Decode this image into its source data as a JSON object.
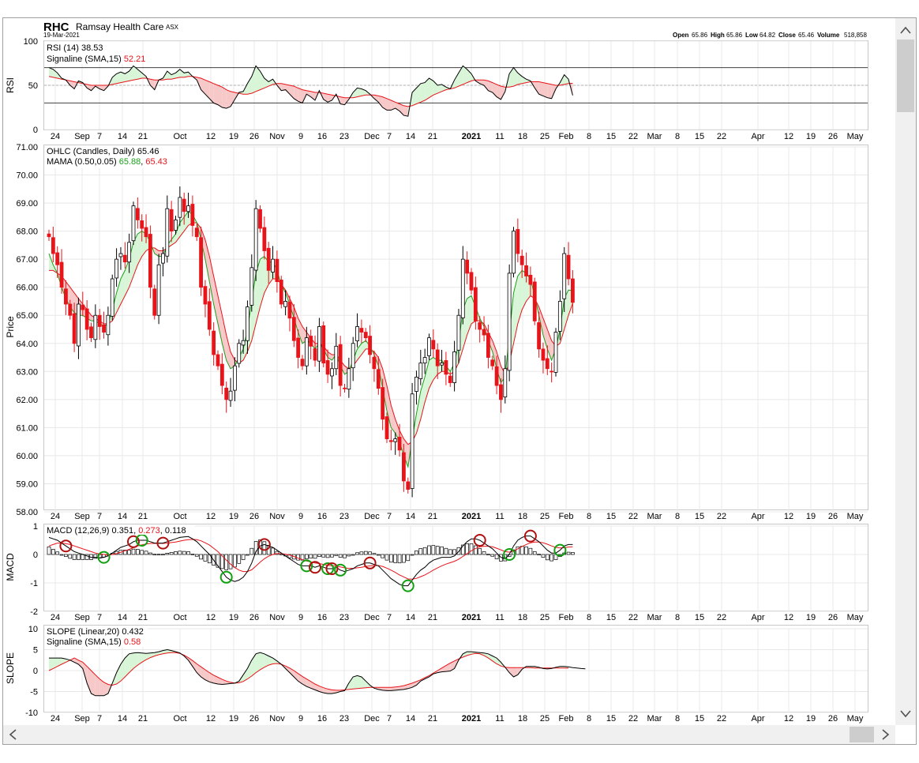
{
  "header": {
    "ticker": "RHC",
    "company": "Ramsay Health Care",
    "exchange": "ASX",
    "date": "19-Mar-2021",
    "open_label": "Open",
    "open": "65.86",
    "high_label": "High",
    "high": "65.86",
    "low_label": "Low",
    "low": "64.82",
    "close_label": "Close",
    "close": "65.46",
    "volume_label": "Volume",
    "volume": "518,858"
  },
  "colors": {
    "up_candle": "#ffffff",
    "down_candle": "#e8141a",
    "mama": "#1aa01a",
    "fama": "#e8141a",
    "fill_up": "#d8f5d8",
    "fill_down": "#f7c8c8",
    "macd_marker_red": "#b01010",
    "macd_marker_green": "#10a010"
  },
  "x_axis": {
    "tick_labels": [
      "24",
      "Sep",
      "7",
      "14",
      "21",
      "Oct",
      "12",
      "19",
      "26",
      "Nov",
      "9",
      "16",
      "23",
      "Dec",
      "7",
      "14",
      "21",
      "2021",
      "11",
      "18",
      "25",
      "Feb",
      "8",
      "15",
      "22",
      "Mar",
      "8",
      "15",
      "22",
      "Apr",
      "12",
      "19",
      "26",
      "May"
    ]
  },
  "panels": {
    "rsi": {
      "axis_label": "RSI",
      "legend1": "RSI (14) 38.53",
      "legend2_label": "Signaline (SMA,15)",
      "legend2_value": "52.21",
      "y_ticks": [
        "100",
        "50",
        "0"
      ]
    },
    "price": {
      "axis_label": "Price",
      "legend1": "OHLC (Candles, Daily) 65.46",
      "legend2_label": "MAMA (0.50,0.05)",
      "legend2_v1": "65.88",
      "legend2_v2": "65.43",
      "y_ticks": [
        "71.00",
        "70.00",
        "69.00",
        "68.00",
        "67.00",
        "66.00",
        "65.00",
        "64.00",
        "63.00",
        "62.00",
        "61.00",
        "60.00",
        "59.00",
        "58.00"
      ]
    },
    "macd": {
      "axis_label": "MACD",
      "legend_label": "MACD (12,26,9)",
      "legend_v1": "0.351",
      "legend_v2": "0.273",
      "legend_v3": "0.118",
      "y_ticks": [
        "1",
        "0",
        "-1",
        "-2"
      ]
    },
    "slope": {
      "axis_label": "SLOPE",
      "legend1": "SLOPE (Linear,20) 0.432",
      "legend2_label": "Signaline (SMA,15)",
      "legend2_value": "0.58",
      "y_ticks": [
        "10",
        "5",
        "0",
        "-5",
        "-10"
      ]
    }
  },
  "chart_data": {
    "type": "candlestick",
    "title": "RHC Ramsay Health Care ASX",
    "x_tick_labels": [
      "24",
      "Sep",
      "7",
      "14",
      "21",
      "Oct",
      "12",
      "19",
      "26",
      "Nov",
      "9",
      "16",
      "23",
      "Dec",
      "7",
      "14",
      "21",
      "2021",
      "11",
      "18",
      "25",
      "Feb",
      "8",
      "15",
      "22",
      "Mar",
      "8",
      "15",
      "22",
      "Apr",
      "12",
      "19",
      "26",
      "May"
    ],
    "price_ylim": [
      58,
      71
    ],
    "rsi_ylim": [
      0,
      100
    ],
    "macd_ylim": [
      -2,
      1
    ],
    "slope_ylim": [
      -10,
      10
    ],
    "close": [
      67.8,
      67.2,
      66.8,
      66.0,
      65.4,
      65.0,
      64.0,
      65.4,
      65.2,
      64.5,
      64.2,
      65.0,
      64.6,
      64.4,
      65.0,
      66.3,
      67.0,
      67.2,
      66.9,
      67.6,
      68.9,
      68.4,
      68.1,
      67.8,
      66.0,
      65.0,
      66.8,
      67.2,
      68.8,
      68.0,
      68.4,
      69.2,
      68.7,
      68.9,
      68.2,
      67.8,
      66.0,
      65.4,
      64.5,
      63.6,
      63.2,
      62.5,
      62.0,
      62.3,
      63.2,
      64.0,
      64.1,
      65.3,
      66.7,
      68.8,
      68.1,
      67.3,
      66.6,
      67.0,
      66.2,
      65.4,
      65.5,
      64.9,
      64.1,
      63.5,
      63.2,
      64.2,
      63.9,
      63.4,
      64.6,
      63.3,
      62.9,
      63.1,
      63.9,
      62.5,
      62.4,
      63.1,
      64.0,
      64.6,
      64.4,
      64.2,
      63.6,
      63.1,
      62.4,
      61.3,
      60.6,
      60.5,
      60.6,
      60.2,
      59.1,
      58.8,
      62.2,
      62.8,
      63.3,
      63.5,
      64.2,
      63.8,
      63.2,
      63.3,
      62.9,
      62.6,
      63.7,
      65.0,
      67.0,
      66.5,
      65.9,
      64.8,
      64.5,
      64.3,
      63.5,
      63.2,
      62.5,
      62.0,
      63.1,
      66.5,
      68.0,
      67.2,
      66.8,
      66.4,
      66.1,
      64.8,
      63.8,
      63.4,
      63.1,
      63.0,
      64.4,
      65.5,
      67.2,
      66.3,
      65.46
    ],
    "rsi": [
      70,
      68,
      64,
      58,
      56,
      50,
      46,
      55,
      53,
      47,
      44,
      49,
      46,
      44,
      49,
      59,
      63,
      65,
      63,
      66,
      72,
      68,
      64,
      60,
      50,
      45,
      56,
      58,
      66,
      62,
      64,
      68,
      64,
      65,
      60,
      56,
      45,
      40,
      35,
      30,
      28,
      25,
      24,
      26,
      34,
      42,
      43,
      52,
      60,
      72,
      66,
      58,
      54,
      57,
      50,
      44,
      45,
      40,
      35,
      32,
      30,
      40,
      37,
      33,
      44,
      34,
      31,
      33,
      40,
      29,
      28,
      34,
      42,
      47,
      46,
      44,
      40,
      35,
      31,
      25,
      22,
      22,
      24,
      21,
      16,
      15,
      42,
      47,
      52,
      53,
      58,
      55,
      50,
      51,
      48,
      46,
      56,
      64,
      72,
      68,
      63,
      55,
      52,
      50,
      44,
      42,
      37,
      34,
      43,
      63,
      70,
      64,
      60,
      57,
      55,
      47,
      40,
      38,
      36,
      35,
      46,
      53,
      62,
      57,
      38.53
    ],
    "rsi_signal": [
      60,
      59,
      58,
      57,
      56,
      55,
      54,
      53,
      52,
      51,
      50,
      50,
      50,
      50,
      50,
      51,
      52,
      53,
      54,
      55,
      56,
      57,
      58,
      58,
      57,
      56,
      56,
      56,
      57,
      57,
      58,
      59,
      59,
      60,
      60,
      59,
      58,
      56,
      54,
      52,
      50,
      48,
      45,
      43,
      42,
      41,
      40,
      40,
      41,
      43,
      45,
      47,
      49,
      51,
      52,
      52,
      51,
      50,
      49,
      47,
      45,
      44,
      43,
      42,
      42,
      41,
      40,
      39,
      38,
      37,
      36,
      36,
      36,
      37,
      38,
      39,
      39,
      39,
      38,
      37,
      35,
      33,
      31,
      29,
      27,
      26,
      27,
      29,
      31,
      33,
      36,
      39,
      41,
      43,
      45,
      46,
      47,
      49,
      51,
      53,
      55,
      56,
      56,
      56,
      55,
      53,
      51,
      49,
      48,
      48,
      49,
      51,
      52,
      53,
      54,
      54,
      54,
      53,
      52,
      51,
      50,
      50,
      51,
      52,
      52.21
    ],
    "mama": [
      67.2,
      66.8,
      66.5,
      66.0,
      65.6,
      65.3,
      65.1,
      65.0,
      65.0,
      64.9,
      64.8,
      64.8,
      64.7,
      64.6,
      64.7,
      65.2,
      65.8,
      66.3,
      66.6,
      67.0,
      67.6,
      67.9,
      68.0,
      67.9,
      67.6,
      67.2,
      67.1,
      67.1,
      67.5,
      67.7,
      67.9,
      68.3,
      68.5,
      68.7,
      68.6,
      68.3,
      67.7,
      67.0,
      66.2,
      65.4,
      64.7,
      64.0,
      63.4,
      63.1,
      63.2,
      63.5,
      63.8,
      64.5,
      65.5,
      66.5,
      67.0,
      67.1,
      66.9,
      66.9,
      66.6,
      66.1,
      65.8,
      65.4,
      64.9,
      64.4,
      64.0,
      64.1,
      64.0,
      63.8,
      64.0,
      63.8,
      63.5,
      63.4,
      63.6,
      63.2,
      62.9,
      63.0,
      63.4,
      63.8,
      64.0,
      64.1,
      63.9,
      63.6,
      63.2,
      62.4,
      61.6,
      61.0,
      60.8,
      60.5,
      60.0,
      59.6,
      60.6,
      61.5,
      62.3,
      62.8,
      63.4,
      63.5,
      63.4,
      63.4,
      63.2,
      63.0,
      63.3,
      64.0,
      65.2,
      65.6,
      65.7,
      65.3,
      64.9,
      64.6,
      64.1,
      63.7,
      63.1,
      62.6,
      62.8,
      64.3,
      65.8,
      66.4,
      66.6,
      66.5,
      66.3,
      65.7,
      65.0,
      64.3,
      63.8,
      63.4,
      63.8,
      64.5,
      65.6,
      65.9,
      65.88
    ],
    "fama": [
      66.6,
      66.6,
      66.5,
      66.4,
      66.2,
      66.0,
      65.8,
      65.6,
      65.4,
      65.2,
      65.0,
      64.9,
      64.8,
      64.7,
      64.7,
      64.8,
      65.1,
      65.4,
      65.7,
      66.0,
      66.4,
      66.8,
      67.1,
      67.3,
      67.4,
      67.4,
      67.3,
      67.3,
      67.4,
      67.5,
      67.6,
      67.8,
      68.0,
      68.2,
      68.3,
      68.3,
      68.1,
      67.7,
      67.1,
      66.4,
      65.7,
      65.0,
      64.3,
      63.7,
      63.4,
      63.3,
      63.4,
      63.7,
      64.1,
      64.7,
      65.3,
      65.8,
      66.1,
      66.3,
      66.3,
      66.1,
      65.9,
      65.6,
      65.3,
      64.9,
      64.6,
      64.4,
      64.2,
      64.0,
      64.0,
      63.9,
      63.7,
      63.6,
      63.6,
      63.4,
      63.2,
      63.1,
      63.2,
      63.4,
      63.6,
      63.8,
      63.8,
      63.7,
      63.5,
      63.1,
      62.5,
      61.8,
      61.3,
      60.9,
      60.6,
      60.4,
      60.5,
      60.8,
      61.3,
      61.9,
      62.4,
      62.7,
      62.9,
      63.0,
      63.0,
      62.9,
      63.0,
      63.3,
      63.8,
      64.3,
      64.7,
      64.8,
      64.8,
      64.7,
      64.4,
      64.1,
      63.7,
      63.2,
      62.9,
      63.3,
      64.0,
      64.7,
      65.2,
      65.5,
      65.7,
      65.6,
      65.3,
      64.9,
      64.5,
      64.1,
      63.9,
      64.0,
      64.5,
      65.0,
      65.43
    ],
    "macd": [
      0.6,
      0.55,
      0.5,
      0.4,
      0.3,
      0.2,
      0.1,
      0.05,
      0.0,
      -0.05,
      -0.1,
      -0.1,
      -0.12,
      -0.1,
      -0.05,
      0.05,
      0.15,
      0.25,
      0.3,
      0.35,
      0.45,
      0.5,
      0.5,
      0.5,
      0.45,
      0.4,
      0.4,
      0.4,
      0.45,
      0.5,
      0.55,
      0.6,
      0.62,
      0.63,
      0.55,
      0.45,
      0.3,
      0.15,
      0.0,
      -0.2,
      -0.4,
      -0.6,
      -0.8,
      -0.9,
      -0.95,
      -0.9,
      -0.8,
      -0.6,
      -0.3,
      0.1,
      0.3,
      0.35,
      0.3,
      0.25,
      0.15,
      0.05,
      -0.05,
      -0.15,
      -0.25,
      -0.35,
      -0.4,
      -0.4,
      -0.4,
      -0.45,
      -0.4,
      -0.45,
      -0.5,
      -0.5,
      -0.45,
      -0.55,
      -0.6,
      -0.55,
      -0.5,
      -0.4,
      -0.35,
      -0.3,
      -0.3,
      -0.35,
      -0.4,
      -0.55,
      -0.7,
      -0.85,
      -0.95,
      -1.05,
      -1.1,
      -1.1,
      -0.9,
      -0.7,
      -0.55,
      -0.45,
      -0.3,
      -0.2,
      -0.15,
      -0.1,
      -0.1,
      -0.1,
      -0.05,
      0.1,
      0.3,
      0.45,
      0.55,
      0.55,
      0.5,
      0.4,
      0.3,
      0.2,
      0.05,
      -0.1,
      -0.15,
      0.0,
      0.3,
      0.5,
      0.6,
      0.65,
      0.65,
      0.55,
      0.45,
      0.3,
      0.15,
      0.05,
      0.05,
      0.15,
      0.3,
      0.35,
      0.351
    ],
    "macd_signal": [
      0.3,
      0.35,
      0.4,
      0.4,
      0.38,
      0.35,
      0.3,
      0.25,
      0.2,
      0.15,
      0.1,
      0.05,
      0.02,
      0.0,
      -0.02,
      0.0,
      0.03,
      0.08,
      0.13,
      0.18,
      0.24,
      0.3,
      0.34,
      0.37,
      0.39,
      0.39,
      0.39,
      0.39,
      0.4,
      0.42,
      0.44,
      0.47,
      0.5,
      0.52,
      0.53,
      0.52,
      0.48,
      0.41,
      0.33,
      0.22,
      0.1,
      -0.05,
      -0.2,
      -0.34,
      -0.46,
      -0.55,
      -0.6,
      -0.6,
      -0.54,
      -0.41,
      -0.27,
      -0.15,
      -0.06,
      0.0,
      0.03,
      0.03,
      0.01,
      -0.02,
      -0.07,
      -0.13,
      -0.18,
      -0.23,
      -0.26,
      -0.3,
      -0.32,
      -0.35,
      -0.38,
      -0.4,
      -0.41,
      -0.44,
      -0.47,
      -0.49,
      -0.49,
      -0.47,
      -0.45,
      -0.42,
      -0.4,
      -0.39,
      -0.39,
      -0.42,
      -0.48,
      -0.55,
      -0.63,
      -0.72,
      -0.79,
      -0.86,
      -0.87,
      -0.84,
      -0.78,
      -0.72,
      -0.64,
      -0.55,
      -0.47,
      -0.4,
      -0.34,
      -0.29,
      -0.24,
      -0.17,
      -0.07,
      0.03,
      0.13,
      0.21,
      0.27,
      0.29,
      0.29,
      0.27,
      0.22,
      0.16,
      0.1,
      0.08,
      0.12,
      0.2,
      0.28,
      0.35,
      0.41,
      0.44,
      0.44,
      0.41,
      0.36,
      0.3,
      0.25,
      0.23,
      0.24,
      0.26,
      0.273
    ],
    "slope": [
      3,
      3,
      3,
      3,
      2.8,
      2.5,
      2,
      1.5,
      0.5,
      -3,
      -5.5,
      -6,
      -6,
      -6,
      -5.5,
      -3,
      -0.5,
      1.5,
      3,
      4,
      4.2,
      4.3,
      4.2,
      4.1,
      4.2,
      4.3,
      4.5,
      4.8,
      5,
      4.8,
      4.5,
      4.2,
      3.5,
      2.5,
      1,
      -0.5,
      -1.5,
      -2.2,
      -2.7,
      -3.0,
      -3.2,
      -3.3,
      -3.2,
      -3.1,
      -3.0,
      -2.5,
      -1.0,
      0.5,
      2.5,
      4.0,
      4.3,
      4.0,
      3.5,
      3.0,
      2.3,
      1.5,
      0.5,
      -0.5,
      -1.5,
      -2.5,
      -3.2,
      -3.8,
      -4.2,
      -4.6,
      -5.0,
      -5.3,
      -5.5,
      -5.5,
      -5.3,
      -5.0,
      -4.8,
      -3.0,
      -1.5,
      -1.2,
      -1.5,
      -2.5,
      -3.5,
      -4.2,
      -4.5,
      -4.7,
      -4.8,
      -4.8,
      -4.7,
      -4.6,
      -4.5,
      -4.3,
      -4.0,
      -3.5,
      -2.5,
      -2.0,
      -1.5,
      -0.8,
      -0.5,
      -0.3,
      -0.2,
      -0.1,
      0.5,
      2.5,
      4.0,
      4.5,
      4.5,
      4.4,
      4.3,
      4.2,
      4.0,
      3.5,
      3.0,
      2.0,
      0.8,
      -0.5,
      -1.5,
      -1.0,
      0.3,
      1.0,
      1.0,
      1.0,
      0.8,
      0.5,
      0.4,
      0.5,
      0.8,
      1.0,
      1.0,
      0.9,
      0.7,
      0.6,
      0.5,
      0.432
    ],
    "slope_signal": [
      0,
      0.5,
      1.0,
      1.5,
      2.0,
      2.5,
      3.0,
      2.5,
      2.0,
      1.0,
      0,
      -1.0,
      -2.0,
      -2.8,
      -3.3,
      -3.5,
      -3.2,
      -2.5,
      -1.5,
      -0.5,
      0.5,
      1.3,
      2.0,
      2.6,
      3.1,
      3.5,
      3.8,
      4.0,
      4.2,
      4.3,
      4.3,
      4.1,
      3.7,
      3.1,
      2.4,
      1.6,
      0.9,
      0.2,
      -0.5,
      -1.1,
      -1.6,
      -2.1,
      -2.5,
      -2.8,
      -3.0,
      -2.9,
      -2.6,
      -2.0,
      -1.3,
      -0.5,
      0.2,
      0.8,
      1.3,
      1.6,
      1.7,
      1.5,
      1.1,
      0.6,
      0.0,
      -0.7,
      -1.4,
      -2.0,
      -2.6,
      -3.2,
      -3.7,
      -4.1,
      -4.4,
      -4.6,
      -4.7,
      -4.7,
      -4.6,
      -4.5,
      -4.4,
      -4.3,
      -4.2,
      -4.1,
      -4.0,
      -4.0,
      -4.0,
      -4.0,
      -4.0,
      -4.0,
      -3.9,
      -3.8,
      -3.6,
      -3.3,
      -3.0,
      -2.6,
      -2.2,
      -1.7,
      -1.2,
      -0.6,
      0.0,
      0.6,
      1.2,
      1.8,
      2.3,
      2.8,
      3.2,
      3.6,
      3.9,
      4.1,
      4.0,
      3.6,
      3.0,
      2.3,
      1.6,
      1.1,
      0.8,
      0.7,
      0.7,
      0.7,
      0.7,
      0.7,
      0.7,
      0.6,
      0.6,
      0.6,
      0.6,
      0.6,
      0.6,
      0.6,
      0.6,
      0.58
    ],
    "macd_markers": [
      {
        "bar": 4,
        "color": "red"
      },
      {
        "bar": 13,
        "color": "green"
      },
      {
        "bar": 20,
        "color": "red"
      },
      {
        "bar": 22,
        "color": "green"
      },
      {
        "bar": 27,
        "color": "red"
      },
      {
        "bar": 42,
        "color": "green"
      },
      {
        "bar": 51,
        "color": "red"
      },
      {
        "bar": 61,
        "color": "green"
      },
      {
        "bar": 63,
        "color": "red"
      },
      {
        "bar": 66,
        "color": "green"
      },
      {
        "bar": 67,
        "color": "red"
      },
      {
        "bar": 69,
        "color": "green"
      },
      {
        "bar": 76,
        "color": "red"
      },
      {
        "bar": 85,
        "color": "green"
      },
      {
        "bar": 102,
        "color": "red"
      },
      {
        "bar": 109,
        "color": "green"
      },
      {
        "bar": 114,
        "color": "red"
      },
      {
        "bar": 121,
        "color": "green"
      }
    ]
  },
  "scrollbar": {
    "up_arrow": "up-arrow",
    "down_arrow": "down-arrow",
    "left_arrow": "left-arrow",
    "right_arrow": "right-arrow"
  }
}
